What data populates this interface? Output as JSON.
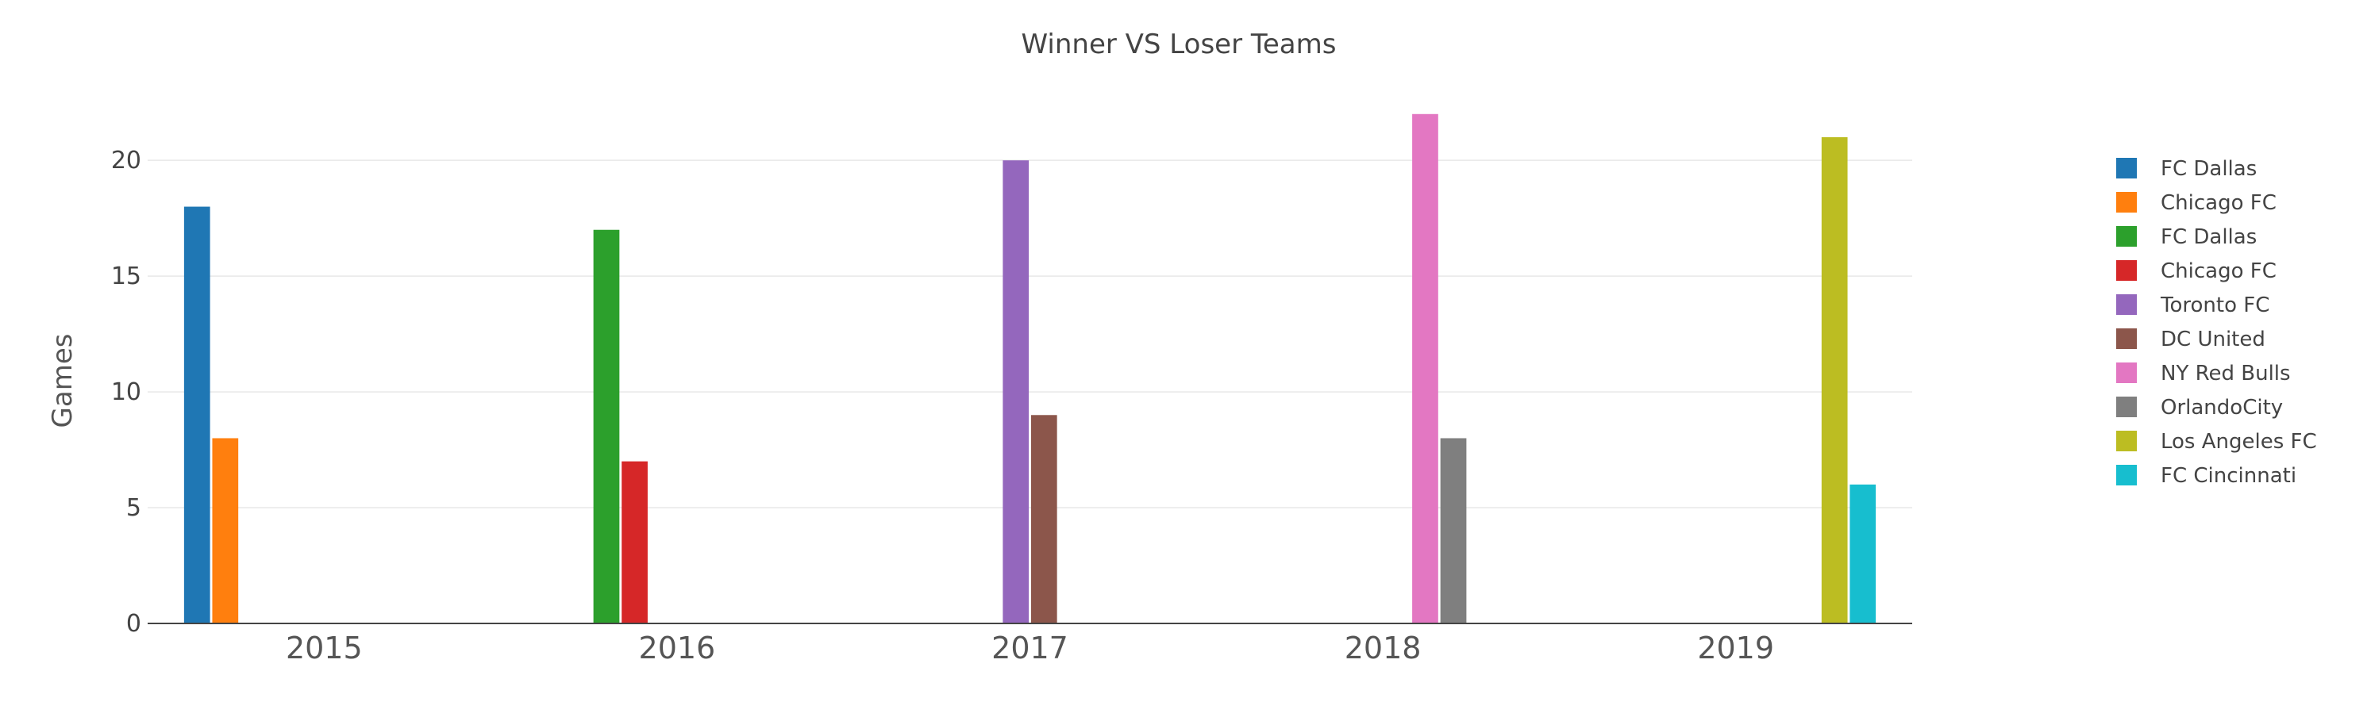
{
  "chart_data": {
    "type": "bar",
    "title": "Winner VS Loser Teams",
    "xlabel": "",
    "ylabel": "Games",
    "categories": [
      "2015",
      "2016",
      "2017",
      "2018",
      "2019"
    ],
    "ylim": [
      0,
      23.5
    ],
    "yticks": [
      0,
      5,
      10,
      15,
      20
    ],
    "grid": true,
    "legend_position": "right",
    "series": [
      {
        "name": "FC Dallas",
        "color": "#1f77b4",
        "values": [
          18,
          null,
          null,
          null,
          null
        ]
      },
      {
        "name": "Chicago FC",
        "color": "#ff7f0e",
        "values": [
          8,
          null,
          null,
          null,
          null
        ]
      },
      {
        "name": "FC Dallas",
        "color": "#2ca02c",
        "values": [
          null,
          17,
          null,
          null,
          null
        ]
      },
      {
        "name": "Chicago FC",
        "color": "#d62728",
        "values": [
          null,
          7,
          null,
          null,
          null
        ]
      },
      {
        "name": "Toronto FC",
        "color": "#9467bd",
        "values": [
          null,
          null,
          20,
          null,
          null
        ]
      },
      {
        "name": "DC United",
        "color": "#8c564b",
        "values": [
          null,
          null,
          9,
          null,
          null
        ]
      },
      {
        "name": "NY Red Bulls",
        "color": "#e377c2",
        "values": [
          null,
          null,
          null,
          22,
          null
        ]
      },
      {
        "name": "OrlandoCity",
        "color": "#7f7f7f",
        "values": [
          null,
          null,
          null,
          8,
          null
        ]
      },
      {
        "name": "Los Angeles FC",
        "color": "#bcbd22",
        "values": [
          null,
          null,
          null,
          null,
          21
        ]
      },
      {
        "name": "FC Cincinnati",
        "color": "#17becf",
        "values": [
          null,
          null,
          null,
          null,
          6
        ]
      }
    ]
  }
}
